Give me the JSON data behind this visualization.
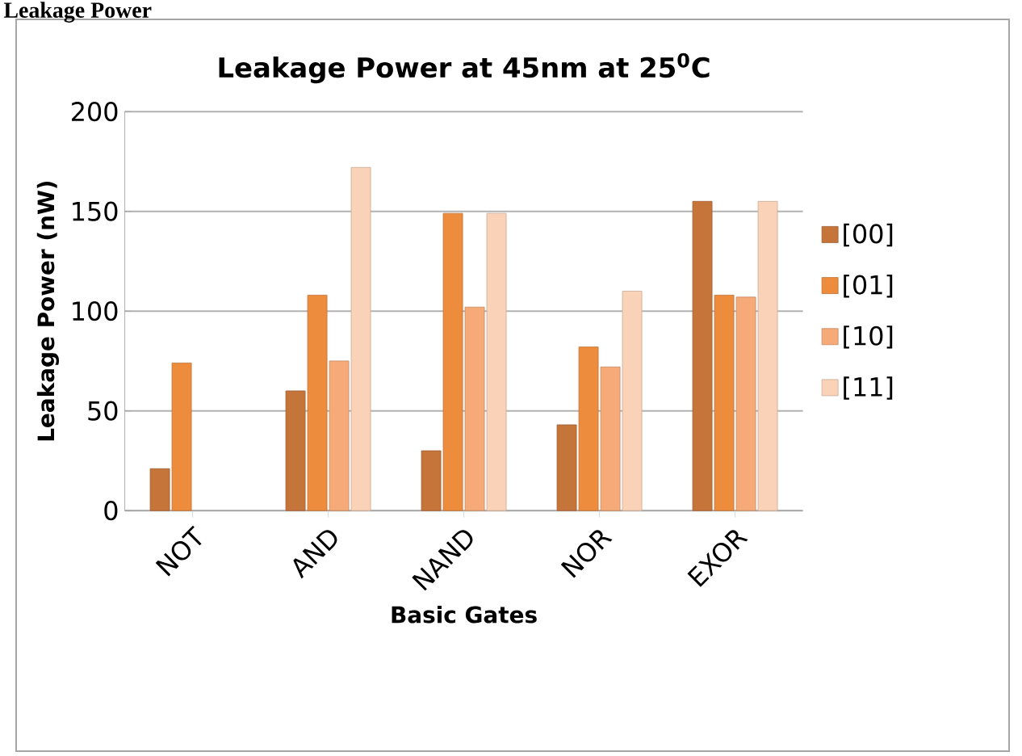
{
  "chart_data": {
    "type": "bar",
    "title": "Leakage Power at 45nm  at 25$^{0}$C",
    "xlabel": "Basic Gates",
    "ylabel": "Leakage Power (nW)",
    "annotations": [
      "Leakage Power"
    ],
    "categories": [
      "NOT",
      "AND",
      "NAND",
      "NOR",
      "EXOR"
    ],
    "series": [
      {
        "name": "[00]",
        "color": "#c5743a",
        "values": [
          21,
          60,
          30,
          43,
          155
        ]
      },
      {
        "name": "[01]",
        "color": "#ee8c3e",
        "values": [
          74,
          108,
          149,
          82,
          108
        ]
      },
      {
        "name": "[10]",
        "color": "#f5aa78",
        "values": [
          null,
          75,
          102,
          72,
          107
        ]
      },
      {
        "name": "[11]",
        "color": "#fad2b8",
        "values": [
          null,
          172,
          149,
          110,
          155
        ]
      }
    ],
    "ylim": [
      0,
      200
    ],
    "yticks": [
      0,
      50,
      100,
      150,
      200
    ],
    "grid": "y",
    "legend": "right"
  }
}
